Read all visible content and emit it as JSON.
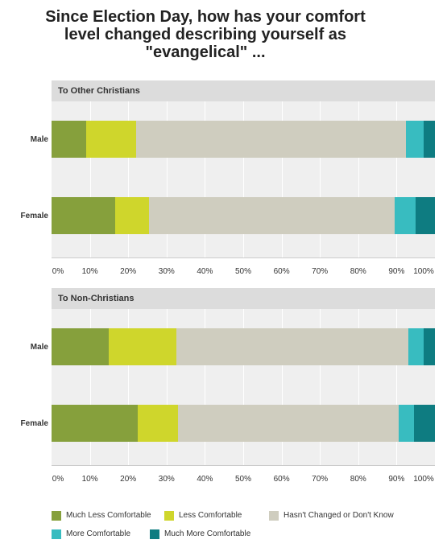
{
  "title_lines": [
    "Since Election Day, how has your comfort",
    "level changed describing yourself as",
    "\"evangelical\" ..."
  ],
  "colors": {
    "much_less": "#86a03c",
    "less": "#cfd62c",
    "unchanged": "#cfcdbf",
    "more": "#38bcc0",
    "much_more": "#0e7c81"
  },
  "chart_data": [
    {
      "type": "bar",
      "orientation": "horizontal",
      "stacked": true,
      "title": "To Other Christians",
      "categories": [
        "Male",
        "Female"
      ],
      "series": [
        {
          "name": "Much Less Comfortable",
          "values": [
            9,
            16.5
          ]
        },
        {
          "name": "Less Comfortable",
          "values": [
            13,
            9
          ]
        },
        {
          "name": "Hasn't Changed or Don't Know",
          "values": [
            70.5,
            64
          ]
        },
        {
          "name": "More Comfortable",
          "values": [
            4.5,
            5.5
          ]
        },
        {
          "name": "Much More Comfortable",
          "values": [
            3,
            5
          ]
        }
      ],
      "xlim": [
        0,
        100
      ],
      "tick_labels": [
        "0%",
        "10%",
        "20%",
        "30%",
        "40%",
        "50%",
        "60%",
        "70%",
        "80%",
        "90%",
        "100%"
      ]
    },
    {
      "type": "bar",
      "orientation": "horizontal",
      "stacked": true,
      "title": "To Non-Christians",
      "categories": [
        "Male",
        "Female"
      ],
      "series": [
        {
          "name": "Much Less Comfortable",
          "values": [
            15,
            22.5
          ]
        },
        {
          "name": "Less Comfortable",
          "values": [
            17.5,
            10.5
          ]
        },
        {
          "name": "Hasn't Changed or Don't Know",
          "values": [
            60.5,
            57.5
          ]
        },
        {
          "name": "More Comfortable",
          "values": [
            4,
            4
          ]
        },
        {
          "name": "Much More Comfortable",
          "values": [
            3,
            5.5
          ]
        }
      ],
      "xlim": [
        0,
        100
      ],
      "tick_labels": [
        "0%",
        "10%",
        "20%",
        "30%",
        "40%",
        "50%",
        "60%",
        "70%",
        "80%",
        "90%",
        "100%"
      ]
    }
  ],
  "legend": [
    {
      "label": "Much Less Comfortable",
      "color_key": "much_less"
    },
    {
      "label": "Less Comfortable",
      "color_key": "less"
    },
    {
      "label": "Hasn't Changed or Don't Know",
      "color_key": "unchanged"
    },
    {
      "label": "More Comfortable",
      "color_key": "more"
    },
    {
      "label": "Much More Comfortable",
      "color_key": "much_more"
    }
  ]
}
